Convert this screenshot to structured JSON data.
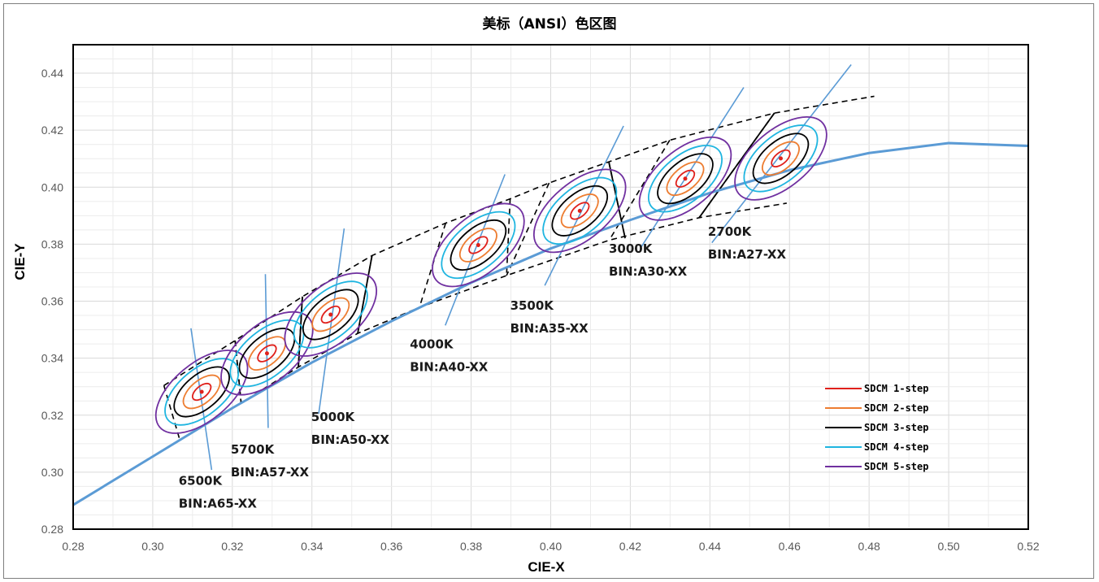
{
  "chart_data": {
    "type": "scatter",
    "title": "美标（ANSI）色区图",
    "xlabel": "CIE-X",
    "ylabel": "CIE-Y",
    "xlim": [
      0.28,
      0.52
    ],
    "ylim": [
      0.28,
      0.45
    ],
    "x_ticks": [
      "0.28",
      "0.30",
      "0.32",
      "0.34",
      "0.36",
      "0.38",
      "0.40",
      "0.42",
      "0.44",
      "0.46",
      "0.48",
      "0.50",
      "0.52"
    ],
    "y_ticks": [
      "0.28",
      "0.30",
      "0.32",
      "0.34",
      "0.36",
      "0.38",
      "0.40",
      "0.42",
      "0.44"
    ],
    "grid": true,
    "legend_position": "bottom-right",
    "colors": {
      "locus": "#5b9bd5",
      "isotherm": "#5b9bd5",
      "quad": "#000000"
    },
    "series": [
      {
        "name": "SDCM 1-step",
        "color": "#e0201b",
        "step": 1
      },
      {
        "name": "SDCM 2-step",
        "color": "#ed7d31",
        "step": 2
      },
      {
        "name": "SDCM 3-step",
        "color": "#000000",
        "step": 3
      },
      {
        "name": "SDCM 4-step",
        "color": "#1fb5e0",
        "step": 4
      },
      {
        "name": "SDCM 5-step",
        "color": "#7030a0",
        "step": 5
      }
    ],
    "locus": [
      [
        0.28,
        0.2885
      ],
      [
        0.3,
        0.3055
      ],
      [
        0.32,
        0.3225
      ],
      [
        0.34,
        0.3385
      ],
      [
        0.36,
        0.353
      ],
      [
        0.38,
        0.3665
      ],
      [
        0.4,
        0.3785
      ],
      [
        0.42,
        0.3885
      ],
      [
        0.44,
        0.398
      ],
      [
        0.46,
        0.406
      ],
      [
        0.48,
        0.412
      ],
      [
        0.5,
        0.4155
      ],
      [
        0.52,
        0.4145
      ]
    ],
    "centers": [
      {
        "cct": "6500K",
        "bin": "BIN:A65-XX",
        "x": 0.3123,
        "y": 0.3282,
        "iso": [
          [
            0.3096,
            0.3505
          ],
          [
            0.3148,
            0.3008
          ]
        ],
        "quad": [
          [
            0.3028,
            0.3304
          ],
          [
            0.3207,
            0.3462
          ],
          [
            0.3222,
            0.3243
          ],
          [
            0.3068,
            0.3113
          ]
        ]
      },
      {
        "cct": "5700K",
        "bin": "BIN:A57-XX",
        "x": 0.3287,
        "y": 0.3417,
        "iso": [
          [
            0.3283,
            0.3695
          ],
          [
            0.329,
            0.3155
          ]
        ],
        "quad": [
          [
            0.3207,
            0.3462
          ],
          [
            0.3376,
            0.3616
          ],
          [
            0.3366,
            0.3369
          ],
          [
            0.3222,
            0.3243
          ]
        ]
      },
      {
        "cct": "5000K",
        "bin": "BIN:A50-XX",
        "x": 0.3447,
        "y": 0.3553,
        "iso": [
          [
            0.3481,
            0.3855
          ],
          [
            0.3417,
            0.3205
          ]
        ],
        "quad": [
          [
            0.3376,
            0.3616
          ],
          [
            0.3551,
            0.376
          ],
          [
            0.3515,
            0.3487
          ],
          [
            0.3366,
            0.3369
          ]
        ]
      },
      {
        "cct": "4000K",
        "bin": "BIN:A40-XX",
        "x": 0.3818,
        "y": 0.3797,
        "iso": [
          [
            0.3885,
            0.4045
          ],
          [
            0.3735,
            0.3515
          ]
        ],
        "quad": [
          [
            0.3736,
            0.3874
          ],
          [
            0.3898,
            0.3959
          ],
          [
            0.3889,
            0.369
          ],
          [
            0.367,
            0.3578
          ]
        ]
      },
      {
        "cct": "3500K",
        "bin": "BIN:A35-XX",
        "x": 0.4073,
        "y": 0.3917,
        "iso": [
          [
            0.4183,
            0.4215
          ],
          [
            0.3985,
            0.3655
          ]
        ],
        "quad": [
          [
            0.3996,
            0.4015
          ],
          [
            0.4146,
            0.4089
          ],
          [
            0.4187,
            0.3821
          ],
          [
            0.3889,
            0.369
          ]
        ]
      },
      {
        "cct": "3000K",
        "bin": "BIN:A30-XX",
        "x": 0.4338,
        "y": 0.403,
        "iso": [
          [
            0.4485,
            0.435
          ],
          [
            0.4225,
            0.3785
          ]
        ],
        "quad": [
          [
            0.4299,
            0.4165
          ],
          [
            0.4562,
            0.426
          ],
          [
            0.4373,
            0.3893
          ],
          [
            0.4147,
            0.3814
          ]
        ]
      },
      {
        "cct": "2700K",
        "bin": "BIN:A27-XX",
        "x": 0.4578,
        "y": 0.4101,
        "iso": [
          [
            0.4755,
            0.443
          ],
          [
            0.4405,
            0.3805
          ]
        ],
        "quad": [
          [
            0.4562,
            0.426
          ],
          [
            0.4813,
            0.4319
          ],
          [
            0.4593,
            0.3944
          ],
          [
            0.4373,
            0.3893
          ]
        ]
      }
    ],
    "quad_outline_top": [
      [
        0.3028,
        0.3304
      ],
      [
        0.3207,
        0.3462
      ],
      [
        0.3376,
        0.3616
      ],
      [
        0.3551,
        0.376
      ],
      [
        0.3736,
        0.3874
      ],
      [
        0.3898,
        0.3959
      ],
      [
        0.3996,
        0.4015
      ],
      [
        0.4146,
        0.4089
      ],
      [
        0.4299,
        0.4165
      ],
      [
        0.4562,
        0.426
      ],
      [
        0.4813,
        0.4319
      ]
    ],
    "quad_outline_bottom": [
      [
        0.3068,
        0.3113
      ],
      [
        0.3222,
        0.3243
      ],
      [
        0.3366,
        0.3369
      ],
      [
        0.3515,
        0.3487
      ],
      [
        0.367,
        0.3578
      ],
      [
        0.3889,
        0.369
      ],
      [
        0.4147,
        0.3814
      ],
      [
        0.4373,
        0.3893
      ],
      [
        0.4593,
        0.3944
      ]
    ]
  }
}
